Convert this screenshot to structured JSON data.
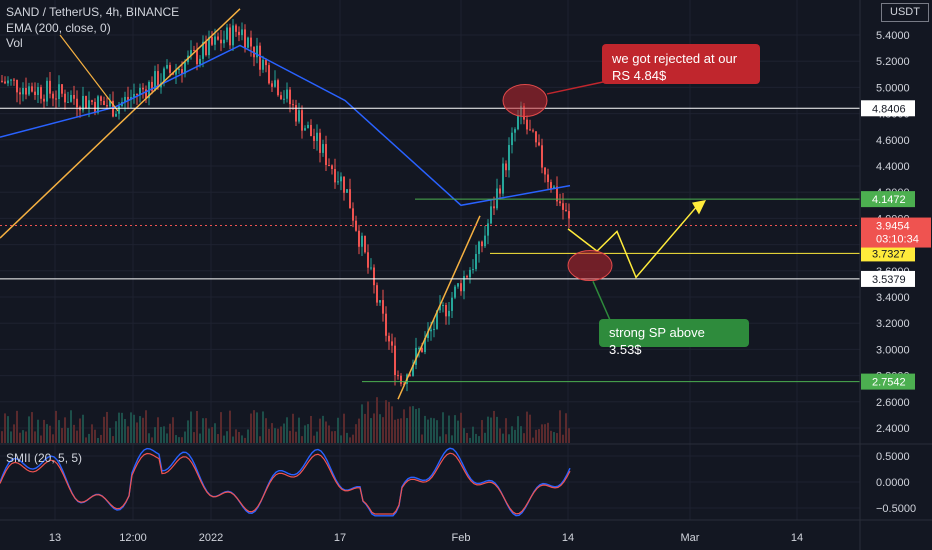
{
  "header": {
    "symbol_line": "SAND / TetherUS, 4h, BINANCE",
    "ema_line": "EMA (200, close, 0)",
    "vol_line": "Vol"
  },
  "currency": "USDT",
  "annotations": {
    "resistance_note": "we got rejected at our RS 4.84$",
    "support_note": "strong SP above 3.53$"
  },
  "indicator": {
    "label": "SMII (20, 5, 5)",
    "ticks": [
      "0.5000",
      "0.0000",
      "−0.5000"
    ]
  },
  "colors": {
    "background": "#131722",
    "up": "#26a69a",
    "down": "#ef5350",
    "ema": "#2962ff",
    "support_green": "#4caf50",
    "projection_yellow": "#ffeb3b",
    "trendline_orange": "#f5b041"
  },
  "chart_data": {
    "type": "candlestick",
    "title": "SAND / TetherUS, 4h, BINANCE",
    "y_axis_ticks": [
      "5.4000",
      "5.2000",
      "5.0000",
      "4.8000",
      "4.6000",
      "4.4000",
      "4.2000",
      "4.0000",
      "3.8000",
      "3.6000",
      "3.4000",
      "3.2000",
      "3.0000",
      "2.8000",
      "2.6000",
      "2.4000"
    ],
    "ylim": [
      2.3,
      5.6
    ],
    "x_axis_labels": [
      "13",
      "12:00",
      "2022",
      "17",
      "Feb",
      "14",
      "Mar",
      "14"
    ],
    "price_levels": [
      {
        "label": "4.8406",
        "value": 4.8406,
        "style": "white"
      },
      {
        "label": "4.1472",
        "value": 4.1472,
        "style": "green"
      },
      {
        "label": "3.7327",
        "value": 3.7327,
        "style": "yellow"
      },
      {
        "label": "3.5379",
        "value": 3.5379,
        "style": "white"
      },
      {
        "label": "2.7542",
        "value": 2.7542,
        "style": "green"
      }
    ],
    "current_price": {
      "label": "3.9454",
      "value": 3.9454,
      "countdown": "03:10:34"
    },
    "price_path": [
      {
        "x": "13",
        "close": 5.05
      },
      {
        "x": "12:00",
        "close": 4.85
      },
      {
        "x": "2022",
        "close": 5.45
      },
      {
        "x": "17",
        "close": 4.25
      },
      {
        "x": "",
        "close": 2.75
      },
      {
        "x": "Feb",
        "close": 3.75
      },
      {
        "x": "",
        "close": 4.8
      },
      {
        "x": "14",
        "close": 3.95
      }
    ],
    "ema_path": [
      {
        "x": "13",
        "value": 4.62
      },
      {
        "x": "12:00",
        "value": 4.85
      },
      {
        "x": "2022",
        "value": 5.32
      },
      {
        "x": "17",
        "value": 4.9
      },
      {
        "x": "Feb",
        "value": 4.1
      },
      {
        "x": "14",
        "value": 4.25
      }
    ]
  }
}
